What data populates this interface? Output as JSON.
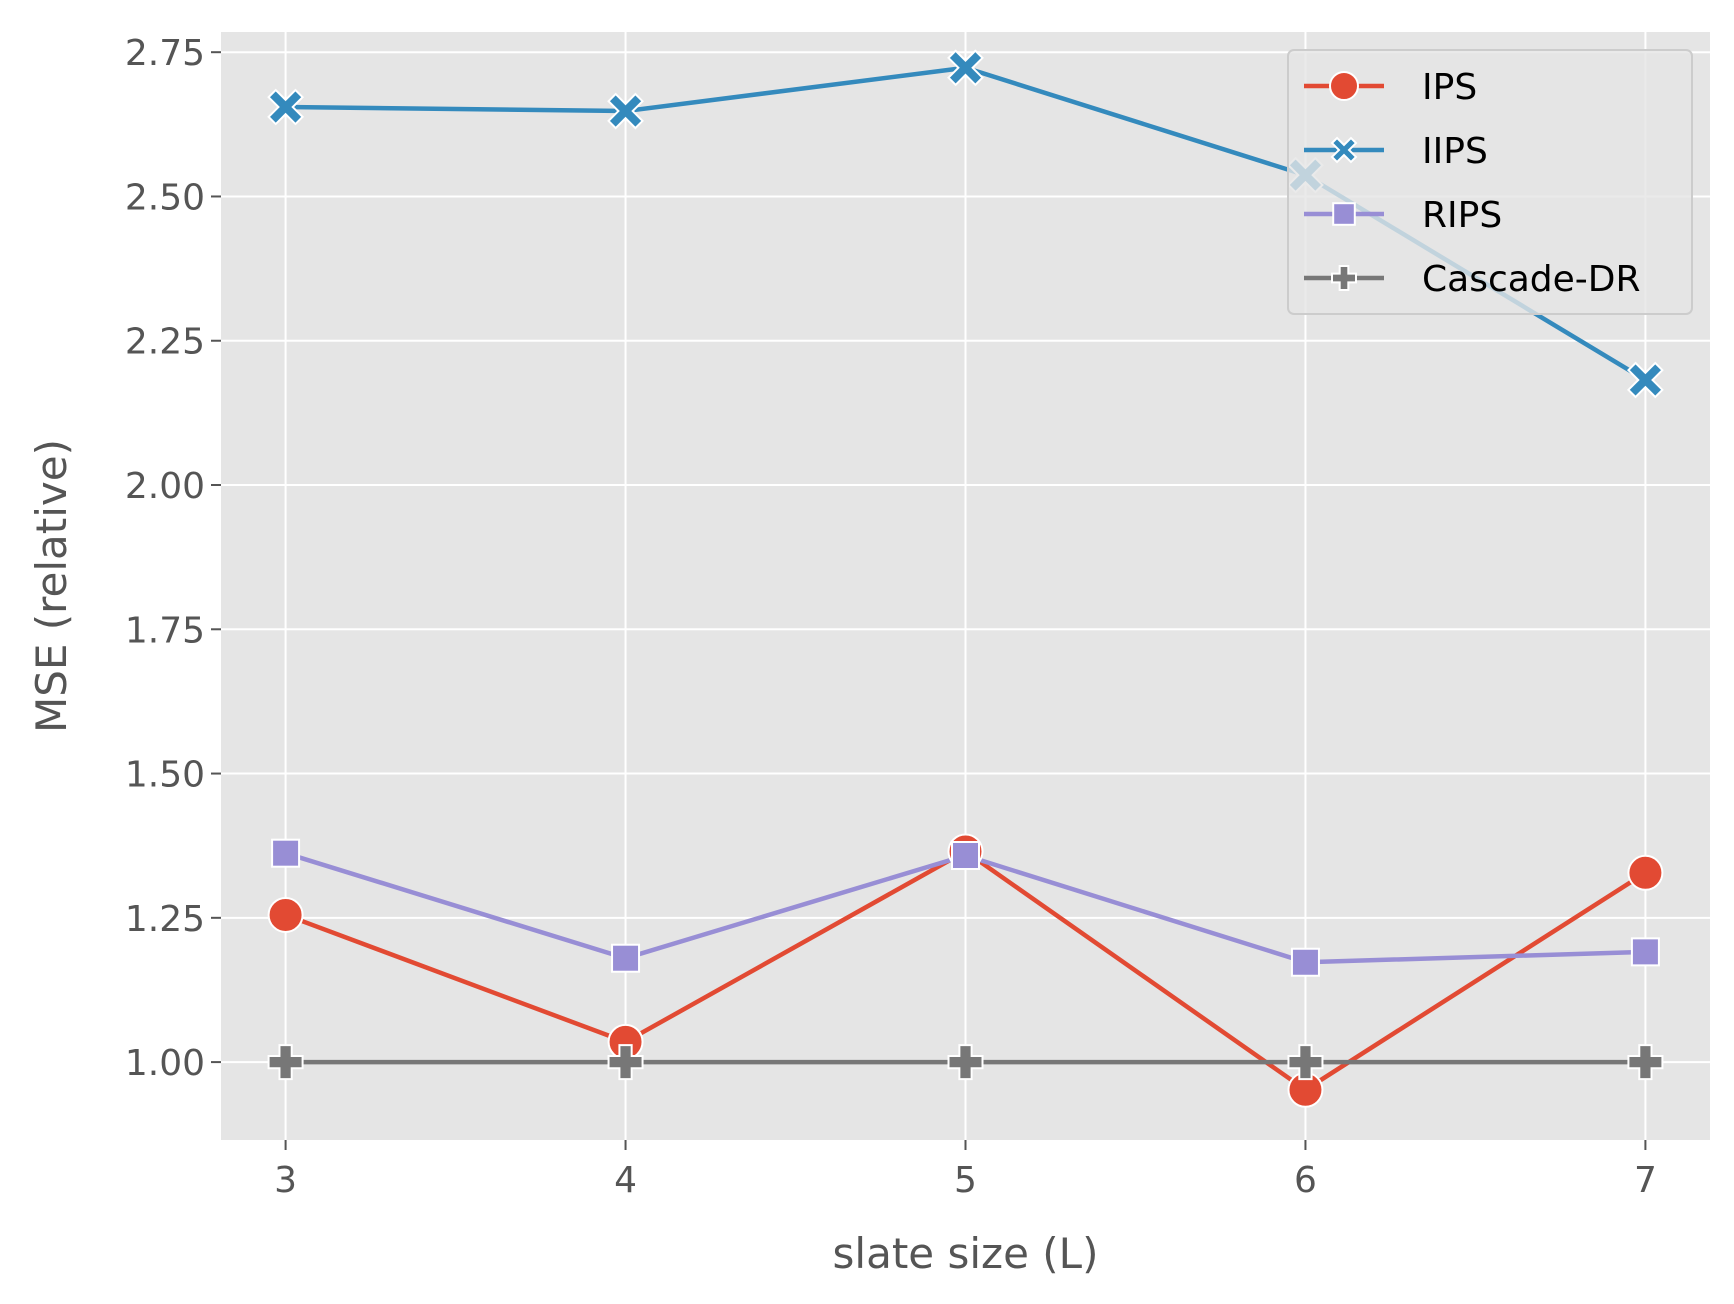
{
  "chart_data": {
    "type": "line",
    "xlabel": "slate size (L)",
    "ylabel": "MSE (relative)",
    "x": [
      3,
      4,
      5,
      6,
      7
    ],
    "xlim": [
      2.81,
      7.19
    ],
    "ylim": [
      0.865,
      2.785
    ],
    "yticks": [
      1.0,
      1.25,
      1.5,
      1.75,
      2.0,
      2.25,
      2.5,
      2.75
    ],
    "ytick_labels": [
      "1.00",
      "1.25",
      "1.50",
      "1.75",
      "2.00",
      "2.25",
      "2.50",
      "2.75"
    ],
    "xticks": [
      3,
      4,
      5,
      6,
      7
    ],
    "xtick_labels": [
      "3",
      "4",
      "5",
      "6",
      "7"
    ],
    "grid": true,
    "legend_position": "top-right",
    "series": [
      {
        "name": "IPS",
        "values": [
          1.255,
          1.035,
          1.365,
          0.952,
          1.328
        ],
        "color": "#E24A33",
        "marker": "circle"
      },
      {
        "name": "IIPS",
        "values": [
          2.655,
          2.648,
          2.723,
          2.537,
          2.182
        ],
        "color": "#348ABD",
        "marker": "x"
      },
      {
        "name": "RIPS",
        "values": [
          1.362,
          1.18,
          1.358,
          1.173,
          1.191
        ],
        "color": "#988ED5",
        "marker": "square"
      },
      {
        "name": "Cascade-DR",
        "values": [
          1.0,
          1.0,
          1.0,
          1.0,
          1.0
        ],
        "color": "#777777",
        "marker": "plus"
      }
    ]
  }
}
